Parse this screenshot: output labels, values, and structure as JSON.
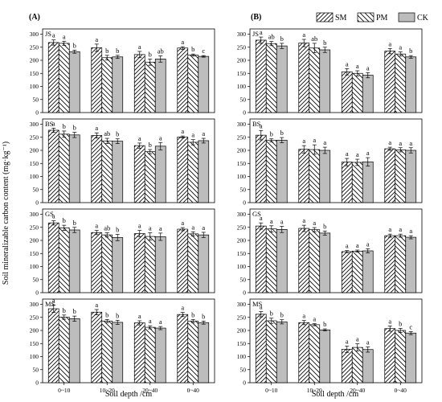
{
  "figure": {
    "ylabel": "Soil mineralizable carbon content (mg·kg⁻¹)",
    "xlabel": "Soil depth  /cm",
    "panel_labels": [
      "(A)",
      "(B)"
    ],
    "colors": {
      "SM": "#ffffff",
      "PM": "#ffffff",
      "CK": "#bdbdbd",
      "axis": "#000000"
    }
  },
  "legend": {
    "items": [
      "SM",
      "PM",
      "CK"
    ],
    "placement": "top-right of panel (B)"
  },
  "chart_data": {
    "type": "bar",
    "categories": [
      "0~10",
      "10~20",
      "20~40",
      "0~40"
    ],
    "series_names": [
      "SM",
      "PM",
      "CK"
    ],
    "yticks": [
      0,
      50,
      100,
      150,
      200,
      250,
      300
    ],
    "ylim": [
      0,
      320
    ],
    "grid": false,
    "panels": [
      {
        "column": "(A)",
        "plots": [
          {
            "label": "JS",
            "values": [
              [
                268,
                265,
                233
              ],
              [
                248,
                210,
                213
              ],
              [
                222,
                193,
                205
              ],
              [
                247,
                220,
                215
              ]
            ],
            "errors": [
              [
                10,
                8,
                6
              ],
              [
                14,
                9,
                6
              ],
              [
                12,
                12,
                12
              ],
              [
                5,
                4,
                3
              ]
            ],
            "sig": [
              [
                "a",
                "a",
                "b"
              ],
              [
                "a",
                "b",
                "b"
              ],
              [
                "a",
                "b",
                "ab"
              ],
              [
                "a",
                "b",
                "c"
              ]
            ]
          },
          {
            "label": "BS",
            "values": [
              [
                277,
                262,
                259
              ],
              [
                257,
                236,
                235
              ],
              [
                218,
                195,
                216
              ],
              [
                251,
                231,
                237
              ]
            ],
            "errors": [
              [
                8,
                12,
                10
              ],
              [
                10,
                10,
                9
              ],
              [
                10,
                8,
                14
              ],
              [
                4,
                10,
                9
              ]
            ],
            "sig": [
              [
                "a",
                "b",
                "b"
              ],
              [
                "a",
                "ab",
                "b"
              ],
              [
                "a",
                "b",
                "a"
              ],
              [
                "a",
                "a",
                "a"
              ]
            ]
          },
          {
            "label": "GS",
            "values": [
              [
                267,
                248,
                240
              ],
              [
                230,
                221,
                211
              ],
              [
                226,
                215,
                214
              ],
              [
                243,
                225,
                221
              ]
            ],
            "errors": [
              [
                8,
                10,
                10
              ],
              [
                8,
                8,
                12
              ],
              [
                12,
                14,
                14
              ],
              [
                6,
                8,
                10
              ]
            ],
            "sig": [
              [
                "a",
                "b",
                "b"
              ],
              [
                "a",
                "ab",
                "b"
              ],
              [
                "a",
                "a",
                "a"
              ],
              [
                "a",
                "a",
                "a"
              ]
            ]
          },
          {
            "label": "MS",
            "values": [
              [
                283,
                251,
                245
              ],
              [
                270,
                236,
                231
              ],
              [
                229,
                212,
                209
              ],
              [
                261,
                236,
                230
              ]
            ],
            "errors": [
              [
                14,
                8,
                10
              ],
              [
                10,
                6,
                8
              ],
              [
                8,
                6,
                6
              ],
              [
                8,
                6,
                6
              ]
            ],
            "sig": [
              [
                "a",
                "b",
                "b"
              ],
              [
                "a",
                "b",
                "b"
              ],
              [
                "a",
                "a",
                "a"
              ],
              [
                "a",
                "b",
                "b"
              ]
            ]
          }
        ]
      },
      {
        "column": "(B)",
        "plots": [
          {
            "label": "JS",
            "values": [
              [
                277,
                264,
                255
              ],
              [
                266,
                247,
                240
              ],
              [
                156,
                150,
                143
              ],
              [
                235,
                224,
                213
              ]
            ],
            "errors": [
              [
                12,
                8,
                10
              ],
              [
                14,
                18,
                10
              ],
              [
                12,
                10,
                10
              ],
              [
                10,
                8,
                5
              ]
            ],
            "sig": [
              [
                "a",
                "ab",
                "b"
              ],
              [
                "a",
                "ab",
                "b"
              ],
              [
                "a",
                "a",
                "a"
              ],
              [
                "a",
                "a",
                "b"
              ]
            ]
          },
          {
            "label": "BS",
            "values": [
              [
                258,
                238,
                239
              ],
              [
                204,
                203,
                200
              ],
              [
                155,
                154,
                156
              ],
              [
                206,
                202,
                200
              ]
            ],
            "errors": [
              [
                18,
                6,
                10
              ],
              [
                14,
                18,
                12
              ],
              [
                14,
                12,
                16
              ],
              [
                6,
                8,
                10
              ]
            ],
            "sig": [
              [
                "a",
                "b",
                "b"
              ],
              [
                "a",
                "a",
                "a"
              ],
              [
                "a",
                "a",
                "a"
              ],
              [
                "a",
                "a",
                "a"
              ]
            ]
          },
          {
            "label": "GS",
            "values": [
              [
                255,
                244,
                242
              ],
              [
                246,
                241,
                228
              ],
              [
                157,
                159,
                160
              ],
              [
                218,
                218,
                212
              ]
            ],
            "errors": [
              [
                12,
                12,
                12
              ],
              [
                12,
                8,
                8
              ],
              [
                4,
                4,
                8
              ],
              [
                6,
                6,
                6
              ]
            ],
            "sig": [
              [
                "a",
                "a",
                "a"
              ],
              [
                "a",
                "a",
                "b"
              ],
              [
                "a",
                "a",
                "a"
              ],
              [
                "a",
                "a",
                "a"
              ]
            ]
          },
          {
            "label": "MS",
            "values": [
              [
                262,
                237,
                233
              ],
              [
                230,
                222,
                202
              ],
              [
                128,
                135,
                127
              ],
              [
                207,
                200,
                190
              ]
            ],
            "errors": [
              [
                10,
                10,
                8
              ],
              [
                8,
                4,
                4
              ],
              [
                12,
                14,
                10
              ],
              [
                10,
                8,
                6
              ]
            ],
            "sig": [
              [
                "a",
                "b",
                "b"
              ],
              [
                "a",
                "a",
                "b"
              ],
              [
                "a",
                "a",
                "a"
              ],
              [
                "a",
                "b",
                "c"
              ]
            ]
          }
        ]
      }
    ]
  }
}
